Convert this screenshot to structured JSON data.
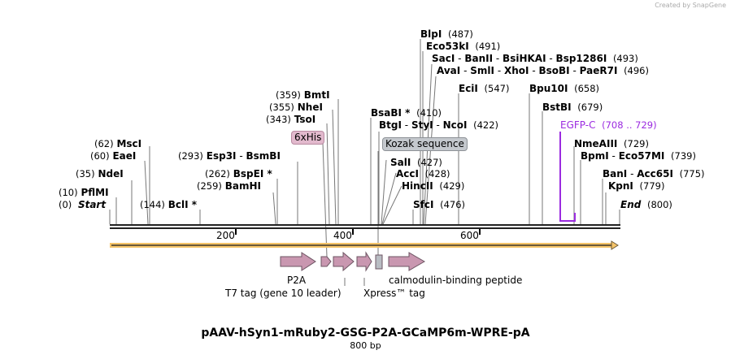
{
  "credit": "Created by SnapGene",
  "title": "pAAV-hSyn1-mRuby2-GSG-P2A-GCaMP6m-WPRE-pA",
  "length": "800 bp",
  "axis_ticks": [
    "200",
    "400",
    "600"
  ],
  "sites": {
    "start": {
      "name": "Start",
      "pos": "(0)"
    },
    "end": {
      "name": "End",
      "pos": "(800)"
    },
    "pflmi": {
      "name": "PflMI",
      "pos": "(10)"
    },
    "ndei": {
      "name": "NdeI",
      "pos": "(35)"
    },
    "eaei": {
      "name": "EaeI",
      "pos": "(60)"
    },
    "msci": {
      "name": "MscI",
      "pos": "(62)"
    },
    "bcli": {
      "name": "BclI *",
      "pos": "(144)"
    },
    "bamhi": {
      "name": "BamHI",
      "pos": "(259)"
    },
    "bspei": {
      "name": "BspEI *",
      "pos": "(262)"
    },
    "esp3i": {
      "name": "Esp3I",
      "sep": "-",
      "name2": "BsmBI",
      "pos": "(293)"
    },
    "tsoi": {
      "name": "TsoI",
      "pos": "(343)"
    },
    "nhei": {
      "name": "NheI",
      "pos": "(355)"
    },
    "bmti": {
      "name": "BmtI",
      "pos": "(359)"
    },
    "bsabi": {
      "name": "BsaBI *",
      "pos": "(410)"
    },
    "btgi": {
      "name": "BtgI",
      "sep": "-",
      "name2": "StyI",
      "sep2": "-",
      "name3": "NcoI",
      "pos": "(422)"
    },
    "sali": {
      "name": "SalI",
      "pos": "(427)"
    },
    "acci": {
      "name": "AccI",
      "pos": "(428)"
    },
    "hincii": {
      "name": "HincII",
      "pos": "(429)"
    },
    "sfci": {
      "name": "SfcI",
      "pos": "(476)"
    },
    "blpi": {
      "name": "BlpI",
      "pos": "(487)"
    },
    "eco53ki": {
      "name": "Eco53kI",
      "pos": "(491)"
    },
    "saci": {
      "name": "SacI",
      "sep": "-",
      "name2": "BanII",
      "sep2": "-",
      "name3": "BsiHKAI",
      "sep3": "-",
      "name4": "Bsp1286I",
      "pos": "(493)"
    },
    "avai": {
      "name": "AvaI",
      "sep": "-",
      "name2": "SmlI",
      "sep2": "-",
      "name3": "XhoI",
      "sep3": "-",
      "name4": "BsoBI",
      "sep4": "-",
      "name5": "PaeR7I",
      "pos": "(496)"
    },
    "ecii": {
      "name": "EciI",
      "pos": "(547)"
    },
    "bpu10i": {
      "name": "Bpu10I",
      "pos": "(658)"
    },
    "bstbi": {
      "name": "BstBI",
      "pos": "(679)"
    },
    "nmeaiii": {
      "name": "NmeAIII",
      "pos": "(729)"
    },
    "bpmi": {
      "name": "BpmI",
      "sep": "-",
      "name2": "Eco57MI",
      "pos": "(739)"
    },
    "bani": {
      "name": "BanI",
      "sep": "-",
      "name2": "Acc65I",
      "pos": "(775)"
    },
    "kpni": {
      "name": "KpnI",
      "pos": "(779)"
    }
  },
  "features": {
    "his": "6xHis",
    "kozak": "Kozak sequence",
    "egfp": {
      "name": "EGFP-C",
      "range": "(708 .. 729)"
    },
    "p2a": "P2A",
    "t7": "T7 tag (gene 10 leader)",
    "xpress": "Xpress™ tag",
    "cbp": "calmodulin-binding peptide"
  },
  "colors": {
    "feature": "#c997b0",
    "kozak": "#b9bdc3",
    "egfp": "#9b2be0",
    "orf": "#f5c469"
  }
}
